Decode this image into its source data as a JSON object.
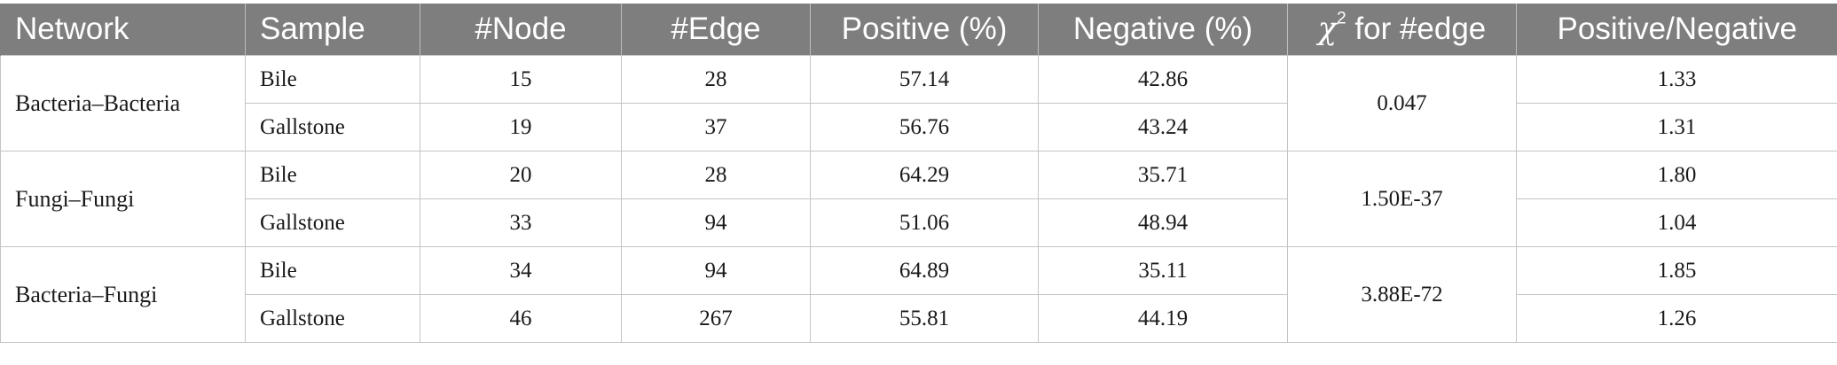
{
  "table": {
    "headers": {
      "network": "Network",
      "sample": "Sample",
      "node": "#Node",
      "edge": "#Edge",
      "positive": "Positive (%)",
      "negative": "Negative (%)",
      "chi_symbol": "χ",
      "chi_sup": "2",
      "chi_rest": " for #edge",
      "ratio": "Positive/Negative"
    },
    "groups": [
      {
        "network": "Bacteria–Bacteria",
        "chi2": "0.047",
        "rows": [
          {
            "sample": "Bile",
            "node": "15",
            "edge": "28",
            "positive": "57.14",
            "negative": "42.86",
            "ratio": "1.33"
          },
          {
            "sample": "Gallstone",
            "node": "19",
            "edge": "37",
            "positive": "56.76",
            "negative": "43.24",
            "ratio": "1.31"
          }
        ]
      },
      {
        "network": "Fungi–Fungi",
        "chi2": "1.50E-37",
        "rows": [
          {
            "sample": "Bile",
            "node": "20",
            "edge": "28",
            "positive": "64.29",
            "negative": "35.71",
            "ratio": "1.80"
          },
          {
            "sample": "Gallstone",
            "node": "33",
            "edge": "94",
            "positive": "51.06",
            "negative": "48.94",
            "ratio": "1.04"
          }
        ]
      },
      {
        "network": "Bacteria–Fungi",
        "chi2": "3.88E-72",
        "rows": [
          {
            "sample": "Bile",
            "node": "34",
            "edge": "94",
            "positive": "64.89",
            "negative": "35.11",
            "ratio": "1.85"
          },
          {
            "sample": "Gallstone",
            "node": "46",
            "edge": "267",
            "positive": "55.81",
            "negative": "44.19",
            "ratio": "1.26"
          }
        ]
      }
    ]
  }
}
